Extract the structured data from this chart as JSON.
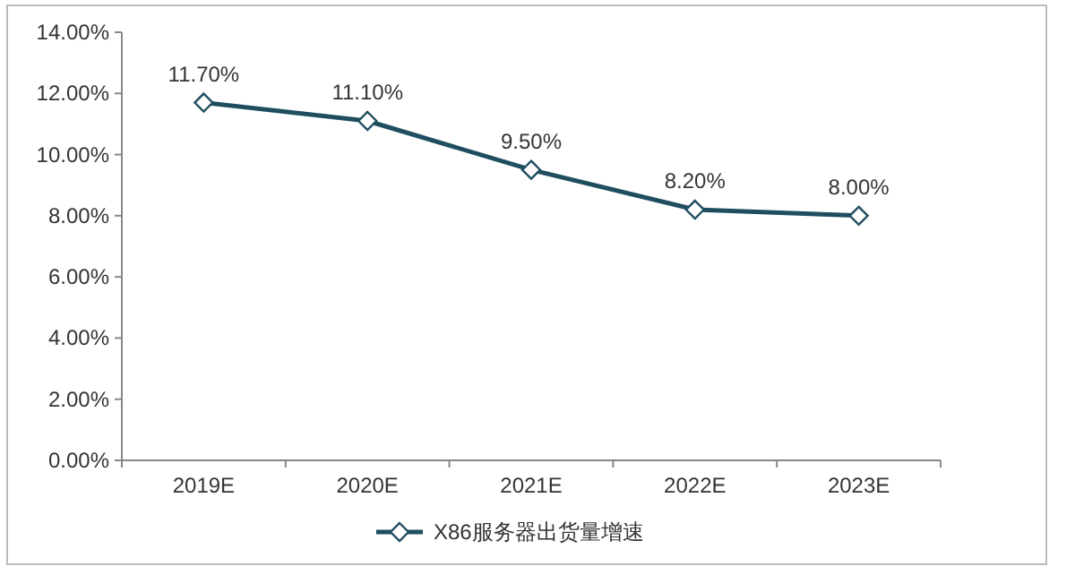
{
  "chart_data": {
    "type": "line",
    "categories": [
      "2019E",
      "2020E",
      "2021E",
      "2022E",
      "2023E"
    ],
    "series": [
      {
        "name": "X86服务器出货量增速",
        "color": "#1f4e5f",
        "values": [
          11.7,
          11.1,
          9.5,
          8.2,
          8.0
        ],
        "value_labels": [
          "11.70%",
          "11.10%",
          "9.50%",
          "8.20%",
          "8.00%"
        ]
      }
    ],
    "ylim": [
      0,
      14
    ],
    "yticks": [
      {
        "value": 0,
        "label": "0.00%"
      },
      {
        "value": 2,
        "label": "2.00%"
      },
      {
        "value": 4,
        "label": "4.00%"
      },
      {
        "value": 6,
        "label": "6.00%"
      },
      {
        "value": 8,
        "label": "8.00%"
      },
      {
        "value": 10,
        "label": "10.00%"
      },
      {
        "value": 12,
        "label": "12.00%"
      },
      {
        "value": 14,
        "label": "14.00%"
      }
    ],
    "marker": "diamond",
    "legend": "bottom",
    "grid": false
  }
}
